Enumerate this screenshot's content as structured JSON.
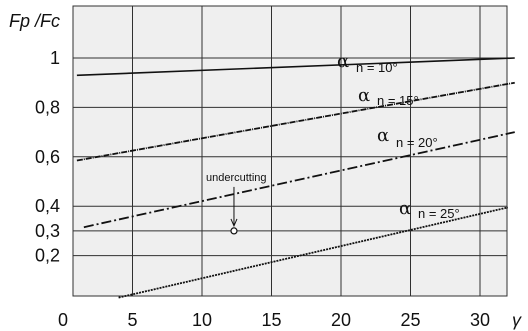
{
  "chart_data": {
    "type": "line",
    "ylabel": "Fp /Fc",
    "xlabel": "γ",
    "xlim": [
      0,
      33
    ],
    "ylim": [
      0,
      1.1
    ],
    "x_ticks": [
      "0",
      "5",
      "10",
      "15",
      "20",
      "25",
      "30"
    ],
    "y_ticks": [
      {
        "value": 1.0,
        "label": "1"
      },
      {
        "value": 0.8,
        "label": "0,8"
      },
      {
        "value": 0.6,
        "label": "0,6"
      },
      {
        "value": 0.4,
        "label": "0,4"
      },
      {
        "value": 0.3,
        "label": "0,3"
      },
      {
        "value": 0.2,
        "label": "0,2"
      }
    ],
    "grid": true,
    "series": [
      {
        "name": "αn = 10°",
        "style": "solid",
        "x": [
          1.0,
          32.5
        ],
        "y": [
          0.93,
          1.0
        ]
      },
      {
        "name": "αn = 15°",
        "style": "dashdot-dense",
        "x": [
          1.0,
          32.5
        ],
        "y": [
          0.585,
          0.9
        ]
      },
      {
        "name": "αn = 20°",
        "style": "dashdot",
        "x": [
          1.5,
          32.5
        ],
        "y": [
          0.315,
          0.7
        ]
      },
      {
        "name": "αn = 25°",
        "style": "dotted-dense",
        "x": [
          4.0,
          32.0
        ],
        "y": [
          0.03,
          0.395
        ]
      }
    ],
    "annotations": [
      {
        "text": "undercutting",
        "point": {
          "x": 12.3,
          "y": 0.3
        }
      }
    ]
  },
  "colors": {
    "plot_bg": "#efefef",
    "grid": "#303030",
    "line": "#111111"
  }
}
